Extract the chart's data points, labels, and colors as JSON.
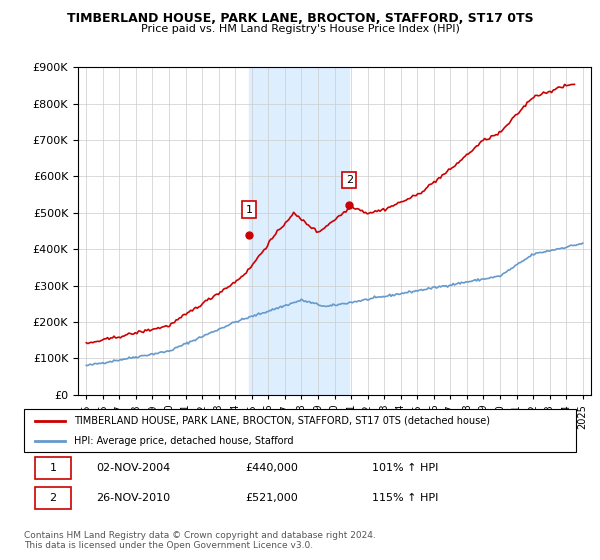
{
  "title": "TIMBERLAND HOUSE, PARK LANE, BROCTON, STAFFORD, ST17 0TS",
  "subtitle": "Price paid vs. HM Land Registry's House Price Index (HPI)",
  "legend_line1": "TIMBERLAND HOUSE, PARK LANE, BROCTON, STAFFORD, ST17 0TS (detached house)",
  "legend_line2": "HPI: Average price, detached house, Stafford",
  "table_row1": [
    "1",
    "02-NOV-2004",
    "£440,000",
    "101% ↑ HPI"
  ],
  "table_row2": [
    "2",
    "26-NOV-2010",
    "£521,000",
    "115% ↑ HPI"
  ],
  "footer": "Contains HM Land Registry data © Crown copyright and database right 2024.\nThis data is licensed under the Open Government Licence v3.0.",
  "sale1_year": 2004.84,
  "sale1_price": 440000,
  "sale2_year": 2010.9,
  "sale2_price": 521000,
  "red_color": "#cc0000",
  "blue_color": "#6699cc",
  "highlight_color": "#ddeeff",
  "ylim_min": 0,
  "ylim_max": 900000,
  "xlim_min": 1994.5,
  "xlim_max": 2025.5
}
